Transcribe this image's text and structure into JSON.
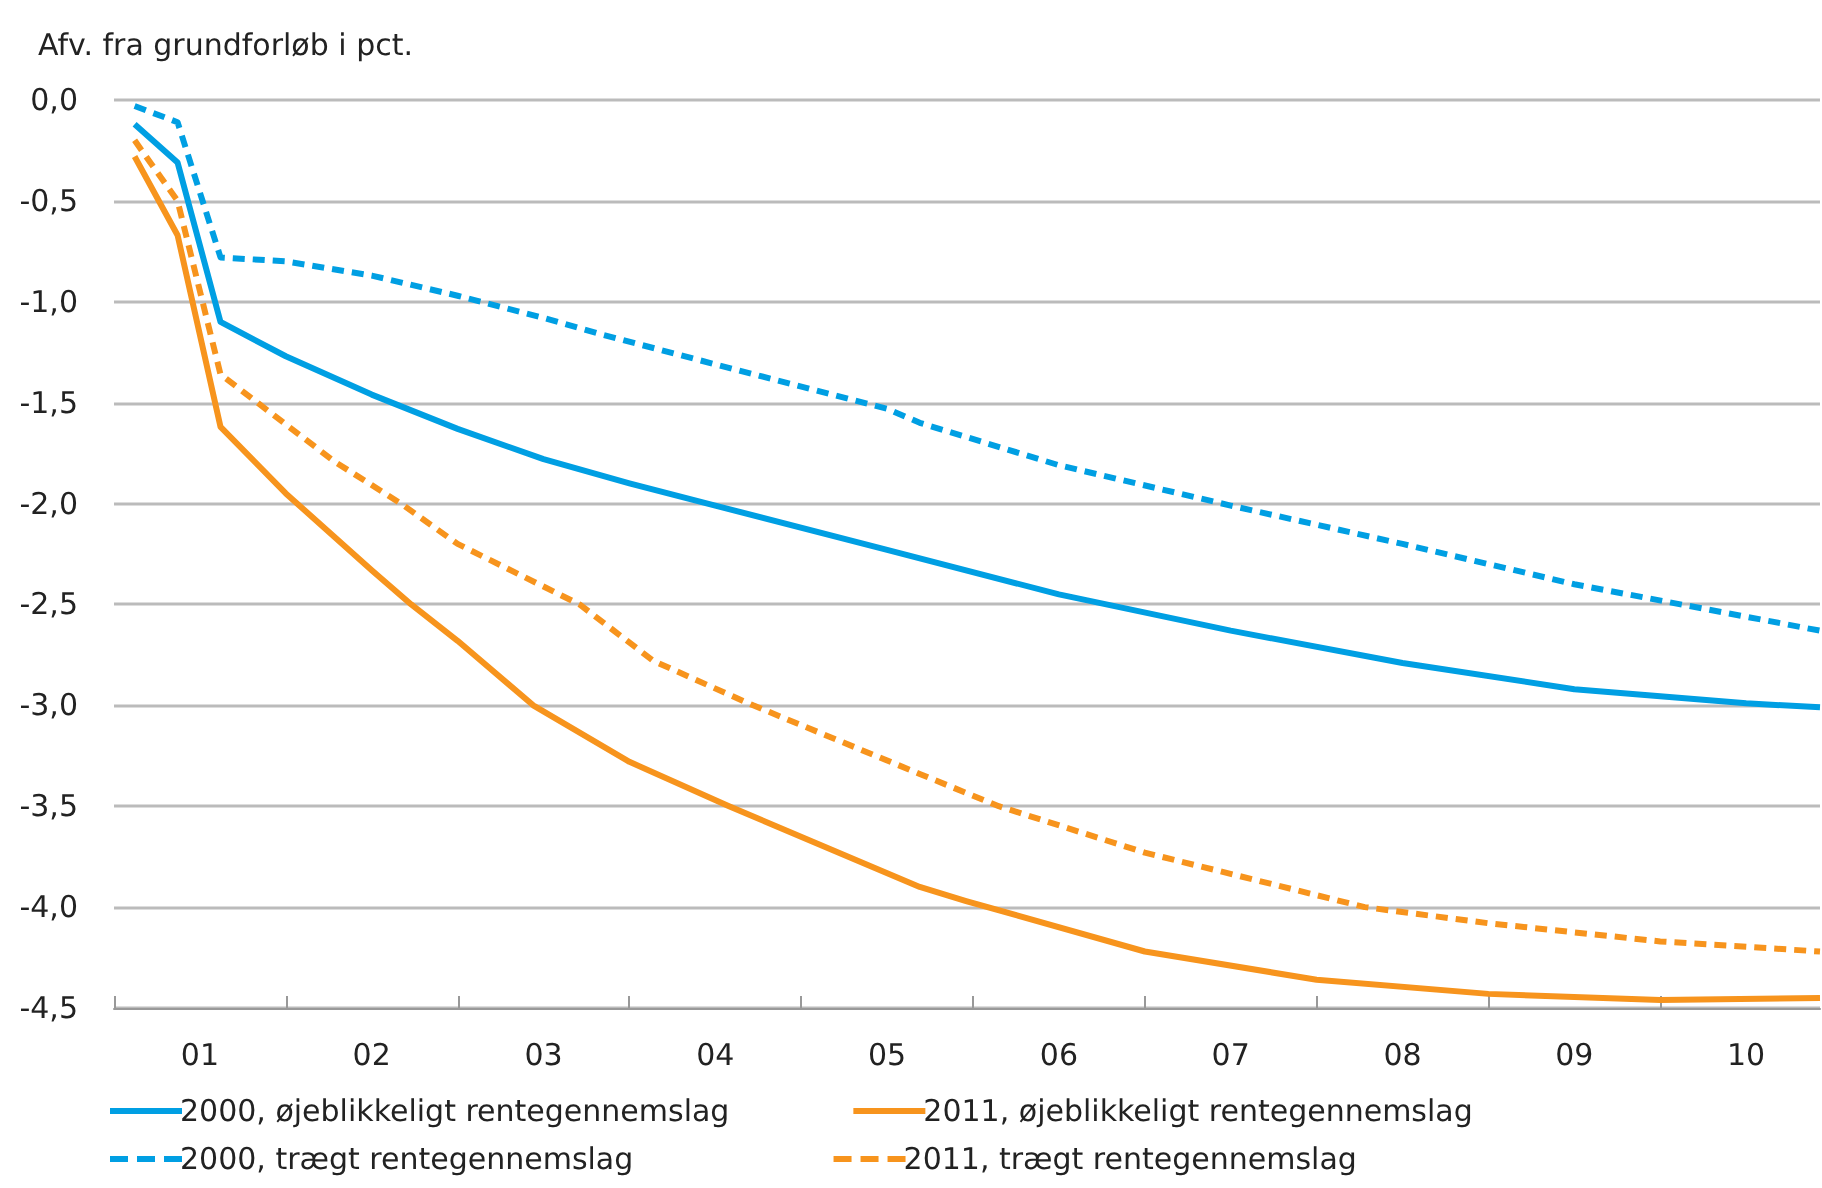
{
  "chart_data": {
    "type": "line",
    "ylabel": "Afv. fra grundforløb i pct.",
    "xlim": [
      0.5,
      10.43
    ],
    "xticks": [
      {
        "value": 0.5,
        "label": null
      },
      {
        "value": 1,
        "label": "01"
      },
      {
        "value": 1.5,
        "label": null
      },
      {
        "value": 2,
        "label": "02"
      },
      {
        "value": 2.5,
        "label": null
      },
      {
        "value": 3,
        "label": "03"
      },
      {
        "value": 3.5,
        "label": null
      },
      {
        "value": 4,
        "label": "04"
      },
      {
        "value": 4.5,
        "label": null
      },
      {
        "value": 5,
        "label": "05"
      },
      {
        "value": 5.5,
        "label": null
      },
      {
        "value": 6,
        "label": "06"
      },
      {
        "value": 6.5,
        "label": null
      },
      {
        "value": 7,
        "label": "07"
      },
      {
        "value": 7.5,
        "label": null
      },
      {
        "value": 8,
        "label": "08"
      },
      {
        "value": 8.5,
        "label": null
      },
      {
        "value": 9,
        "label": "09"
      },
      {
        "value": 9.5,
        "label": null
      },
      {
        "value": 10,
        "label": "10"
      }
    ],
    "ylim": [
      -4.5,
      0
    ],
    "yticks": [
      {
        "value": -4.5,
        "label": "-4,5"
      },
      {
        "value": -4,
        "label": "-4,0"
      },
      {
        "value": -3.5,
        "label": "-3,5"
      },
      {
        "value": -3,
        "label": "-3,0"
      },
      {
        "value": -2.5,
        "label": "-2,5"
      },
      {
        "value": -2,
        "label": "-2,0"
      },
      {
        "value": -1.5,
        "label": "-1,5"
      },
      {
        "value": -1,
        "label": "-1,0"
      },
      {
        "value": -0.5,
        "label": "-0,5"
      },
      {
        "value": 0,
        "label": "0,0"
      }
    ],
    "grid": "y",
    "legend": "bottom",
    "marker": "none",
    "series": [
      {
        "name": "2000, øjeblikkeligt rentegennemslag",
        "color": "#009fe3",
        "line_style": "solid",
        "x": [
          0.62,
          0.87,
          1.12,
          1.5,
          2,
          2.5,
          3,
          3.5,
          4,
          5,
          6,
          7,
          8,
          9,
          10,
          10.43
        ],
        "values": [
          -0.12,
          -0.31,
          -1.1,
          -1.27,
          -1.46,
          -1.63,
          -1.78,
          -1.9,
          -2.01,
          -2.23,
          -2.45,
          -2.63,
          -2.79,
          -2.92,
          -2.99,
          -3.01
        ]
      },
      {
        "name": "2011, øjeblikkeligt rentegennemslag",
        "color": "#f7941d",
        "line_style": "solid",
        "x": [
          0.62,
          0.87,
          1.12,
          1.5,
          2,
          2.23,
          2.5,
          2.94,
          3.5,
          4.08,
          5.19,
          5.46,
          6.5,
          7.5,
          8.5,
          9.5,
          10.43
        ],
        "values": [
          -0.28,
          -0.67,
          -1.62,
          -1.95,
          -2.33,
          -2.5,
          -2.68,
          -3.0,
          -3.28,
          -3.5,
          -3.9,
          -3.97,
          -4.22,
          -4.36,
          -4.43,
          -4.46,
          -4.45
        ]
      },
      {
        "name": "2000, trægt rentegennemslag",
        "color": "#009fe3",
        "line_style": "dashed",
        "x": [
          0.62,
          0.87,
          1.12,
          1.5,
          2,
          2.5,
          3,
          3.33,
          4,
          5,
          5.19,
          6,
          7,
          8,
          9,
          10.43
        ],
        "values": [
          -0.03,
          -0.11,
          -0.78,
          -0.8,
          -0.87,
          -0.97,
          -1.08,
          -1.16,
          -1.31,
          -1.53,
          -1.6,
          -1.81,
          -2.01,
          -2.2,
          -2.4,
          -2.63
        ]
      },
      {
        "name": "2011, trægt rentegennemslag",
        "color": "#f7941d",
        "line_style": "dashed",
        "x": [
          0.62,
          0.87,
          1.12,
          1.78,
          2.17,
          2.5,
          3.21,
          3.64,
          4.22,
          5.19,
          5.65,
          6.5,
          7.78,
          8.5,
          9.5,
          10.43
        ],
        "values": [
          -0.2,
          -0.5,
          -1.36,
          -1.79,
          -2.0,
          -2.2,
          -2.5,
          -2.78,
          -3.0,
          -3.34,
          -3.5,
          -3.73,
          -4.0,
          -4.08,
          -4.17,
          -4.22
        ]
      }
    ]
  }
}
